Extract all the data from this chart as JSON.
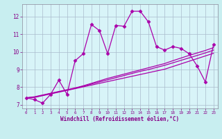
{
  "xlabel": "Windchill (Refroidissement éolien,°C)",
  "background_color": "#c8eef0",
  "plot_bg": "#d8f4f8",
  "line_color": "#aa00aa",
  "grid_color": "#aabbcc",
  "x": [
    0,
    1,
    2,
    3,
    4,
    5,
    6,
    7,
    8,
    9,
    10,
    11,
    12,
    13,
    14,
    15,
    16,
    17,
    18,
    19,
    20,
    21,
    22,
    23
  ],
  "y_main": [
    7.4,
    7.3,
    7.1,
    7.6,
    8.4,
    7.6,
    9.5,
    9.9,
    11.55,
    11.2,
    9.9,
    11.5,
    11.45,
    12.3,
    12.3,
    11.7,
    10.3,
    10.1,
    10.3,
    10.2,
    9.9,
    9.2,
    8.3,
    10.4
  ],
  "y_line1": [
    7.4,
    7.42,
    7.52,
    7.62,
    7.72,
    7.82,
    7.92,
    8.02,
    8.12,
    8.22,
    8.32,
    8.42,
    8.52,
    8.62,
    8.72,
    8.82,
    8.92,
    9.02,
    9.17,
    9.32,
    9.47,
    9.62,
    9.77,
    9.92
  ],
  "y_line2": [
    7.4,
    7.44,
    7.54,
    7.64,
    7.74,
    7.84,
    7.94,
    8.06,
    8.18,
    8.3,
    8.42,
    8.54,
    8.66,
    8.78,
    8.9,
    9.0,
    9.12,
    9.24,
    9.38,
    9.52,
    9.66,
    9.8,
    9.94,
    10.1
  ],
  "y_line3": [
    7.4,
    7.46,
    7.56,
    7.66,
    7.76,
    7.86,
    7.96,
    8.08,
    8.22,
    8.36,
    8.5,
    8.62,
    8.74,
    8.86,
    8.98,
    9.1,
    9.22,
    9.34,
    9.5,
    9.65,
    9.8,
    9.94,
    10.08,
    10.24
  ],
  "ylim": [
    6.8,
    12.7
  ],
  "xlim": [
    -0.5,
    23.5
  ],
  "yticks": [
    7,
    8,
    9,
    10,
    11,
    12
  ],
  "xticks": [
    0,
    1,
    2,
    3,
    4,
    5,
    6,
    7,
    8,
    9,
    10,
    11,
    12,
    13,
    14,
    15,
    16,
    17,
    18,
    19,
    20,
    21,
    22,
    23
  ]
}
